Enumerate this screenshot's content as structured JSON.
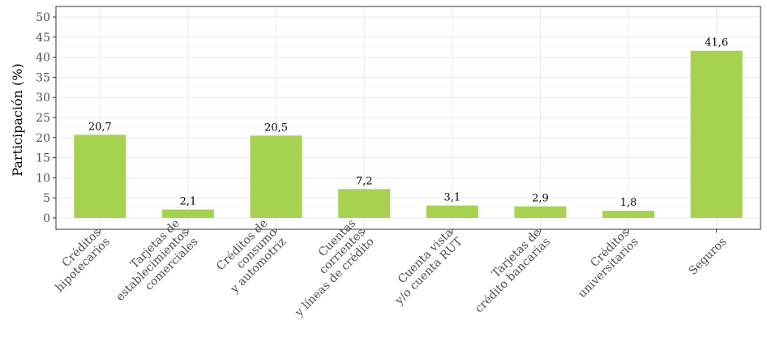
{
  "chart_data": {
    "type": "bar",
    "title": "",
    "xlabel": "",
    "ylabel": "Participación (%)",
    "ylim": [
      0,
      52
    ],
    "yticks": [
      0,
      5,
      10,
      15,
      20,
      25,
      30,
      35,
      40,
      45,
      50
    ],
    "grid": true,
    "bar_color": "#a6d34f",
    "categories": [
      [
        "Créditos",
        "hipotecarios"
      ],
      [
        "Tarjetas de",
        "establecimientos",
        "comerciales"
      ],
      [
        "Créditos de",
        "consumo",
        "y automotriz"
      ],
      [
        "Cuentas",
        "corrientes",
        "y líneas de crédito"
      ],
      [
        "Cuenta vista",
        "y/o cuenta RUT"
      ],
      [
        "Tarjetas de",
        "crédito bancarias"
      ],
      [
        "Créditos",
        "universitarios"
      ],
      [
        "Seguros"
      ]
    ],
    "values": [
      20.7,
      2.1,
      20.5,
      7.2,
      3.1,
      2.9,
      1.8,
      41.6
    ],
    "value_labels": [
      "20,7",
      "2,1",
      "20,5",
      "7,2",
      "3,1",
      "2,9",
      "1,8",
      "41,6"
    ]
  }
}
